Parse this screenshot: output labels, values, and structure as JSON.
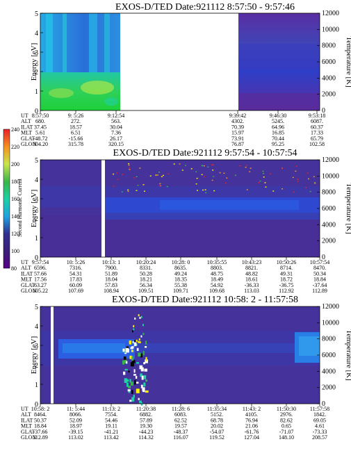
{
  "colorbar": {
    "label": "Second Harmonic Current",
    "ticks": [
      "240",
      "220",
      "200",
      "180",
      "160",
      "140",
      "120",
      "100",
      "80"
    ],
    "colors": [
      "#e8202a",
      "#f7941d",
      "#fff200",
      "#c8e64a",
      "#39b54a",
      "#1bd1a5",
      "#1ba1e2",
      "#2e3192",
      "#3a1e7a",
      "#550088"
    ]
  },
  "chart_data": [
    {
      "type": "heatmap",
      "title": "EXOS-D/TED   Date:921112  8:57:50 - 9:57:46",
      "ylabel": "Energy [eV]",
      "y2label": "Temperature [K]",
      "ylim": [
        0,
        5
      ],
      "y_ticks": [
        "0",
        "1",
        "2",
        "3",
        "4",
        "5"
      ],
      "y2lim": [
        0,
        12000
      ],
      "y2_ticks": [
        "0",
        "2000",
        "4000",
        "6000",
        "8000",
        "10000",
        "12000"
      ],
      "data_gaps": [
        {
          "from": "9:15",
          "to": "9:38"
        }
      ],
      "table_labels": [
        "UT",
        "ALT",
        "ILAT",
        "MLT",
        "GLAT",
        "GLON"
      ],
      "table_columns": [
        {
          "UT": "8:57:50",
          "ALT": "680.",
          "ILAT": "37.45",
          "MLT": "5.61",
          "GLAT": "-48.72",
          "GLON": "304.20"
        },
        {
          "UT": "9: 5:26",
          "ALT": "272.",
          "ILAT": "18.57",
          "MLT": "6.51",
          "GLAT": "-15.66",
          "GLON": "315.78"
        },
        {
          "UT": "9:12:54",
          "ALT": "563.",
          "ILAT": "30.04",
          "MLT": "7.36",
          "GLAT": "26.17",
          "GLON": "320.15"
        },
        {
          "UT": "9:39:42",
          "ALT": "4302.",
          "ILAT": "70.39",
          "MLT": "15.97",
          "GLAT": "73.91",
          "GLON": "76.87"
        },
        {
          "UT": "9:46:30",
          "ALT": "5245.",
          "ILAT": "64.96",
          "MLT": "16.85",
          "GLAT": "70.44",
          "GLON": "95.25"
        },
        {
          "UT": "9:53:18",
          "ALT": "6087.",
          "ILAT": "60.37",
          "MLT": "17.33",
          "GLAT": "65.79",
          "GLON": "102.58"
        }
      ]
    },
    {
      "type": "heatmap",
      "title": "EXOS-D/TED   Date:921112  9:57:54 - 10:57:54",
      "ylabel": "Energy [eV]",
      "y2label": "Temperature [K]",
      "ylim": [
        0,
        5
      ],
      "y_ticks": [
        "0",
        "1",
        "2",
        "3",
        "4",
        "5"
      ],
      "y2lim": [
        0,
        12000
      ],
      "y2_ticks": [
        "0",
        "2000",
        "4000",
        "6000",
        "8000",
        "10000",
        "12000"
      ],
      "table_labels": [
        "UT",
        "ALT",
        "ILAT",
        "MLT",
        "GLAT",
        "GLON"
      ],
      "table_columns": [
        {
          "UT": "9:57:54",
          "ALT": "6596.",
          "ILAT": "57.66",
          "MLT": "17.56",
          "GLAT": "63.27",
          "GLON": "105.22"
        },
        {
          "UT": "10: 5:26",
          "ALT": "7316.",
          "ILAT": "54.31",
          "MLT": "17.83",
          "GLAT": "60.09",
          "GLON": "107.69"
        },
        {
          "UT": "10:13: 1",
          "ALT": "7900.",
          "ILAT": "51.89",
          "MLT": "18.04",
          "GLAT": "57.83",
          "GLON": "108.94"
        },
        {
          "UT": "10:20:24",
          "ALT": "8331.",
          "ILAT": "50.28",
          "MLT": "18.21",
          "GLAT": "56.34",
          "GLON": "109.51"
        },
        {
          "UT": "10:28: 0",
          "ALT": "8635.",
          "ILAT": "49.24",
          "MLT": "18.35",
          "GLAT": "55.38",
          "GLON": "109.71"
        },
        {
          "UT": "10:35:55",
          "ALT": "8803.",
          "ILAT": "48.75",
          "MLT": "18.49",
          "GLAT": "54.92",
          "GLON": "109.68"
        },
        {
          "UT": "10:43:23",
          "ALT": "8821.",
          "ILAT": "48.82",
          "MLT": "18.61",
          "GLAT": "-36.33",
          "GLON": "113.03"
        },
        {
          "UT": "10:50:26",
          "ALT": "8714.",
          "ILAT": "49.31",
          "MLT": "18.72",
          "GLAT": "-36.75",
          "GLON": "112.92"
        },
        {
          "UT": "10:57:54",
          "ALT": "8470.",
          "ILAT": "50.34",
          "MLT": "18.84",
          "GLAT": "-37.64",
          "GLON": "112.89"
        }
      ]
    },
    {
      "type": "heatmap",
      "title": "EXOS-D/TED   Date:921112  10:58: 2 - 11:57:58",
      "ylabel": "Energy [eV]",
      "y2label": "Temperature [K]",
      "ylim": [
        0,
        5
      ],
      "y_ticks": [
        "0",
        "1",
        "2",
        "3",
        "4",
        "5"
      ],
      "y2lim": [
        0,
        12000
      ],
      "y2_ticks": [
        "0",
        "2000",
        "4000",
        "6000",
        "8000",
        "10000",
        "12000"
      ],
      "table_labels": [
        "UT",
        "ALT",
        "ILAT",
        "MLT",
        "GLAT",
        "GLON"
      ],
      "table_columns": [
        {
          "UT": "10:58: 2",
          "ALT": "8464.",
          "ILAT": "50.37",
          "MLT": "18.84",
          "GLAT": "-37.66",
          "GLON": "112.89"
        },
        {
          "UT": "11: 5:44",
          "ALT": "8066.",
          "ILAT": "52.09",
          "MLT": "18.97",
          "GLAT": "-39.15",
          "GLON": "113.02"
        },
        {
          "UT": "11:13: 2",
          "ALT": "7554.",
          "ILAT": "54.46",
          "MLT": "19.11",
          "GLAT": "-41.21",
          "GLON": "113.42"
        },
        {
          "UT": "11:20:38",
          "ALT": "6882.",
          "ILAT": "57.89",
          "MLT": "19.30",
          "GLAT": "-44.23",
          "GLON": "114.32"
        },
        {
          "UT": "11:28: 6",
          "ALT": "6083.",
          "ILAT": "62.52",
          "MLT": "19.57",
          "GLAT": "-48.37",
          "GLON": "116.07"
        },
        {
          "UT": "11:35:34",
          "ALT": "5152.",
          "ILAT": "68.78",
          "MLT": "20.02",
          "GLAT": "-54.07",
          "GLON": "119.52"
        },
        {
          "UT": "11:43: 2",
          "ALT": "4105.",
          "ILAT": "76.94",
          "MLT": "21.06",
          "GLAT": "-61.76",
          "GLON": "127.04"
        },
        {
          "UT": "11:50:30",
          "ALT": "2976.",
          "ILAT": "82.62",
          "MLT": "0.65",
          "GLAT": "-71.07",
          "GLON": "148.10"
        },
        {
          "UT": "11:57:58",
          "ALT": "1842.",
          "ILAT": "69.05",
          "MLT": "4.61",
          "GLAT": "-73.33",
          "GLON": "208.57"
        }
      ]
    }
  ]
}
